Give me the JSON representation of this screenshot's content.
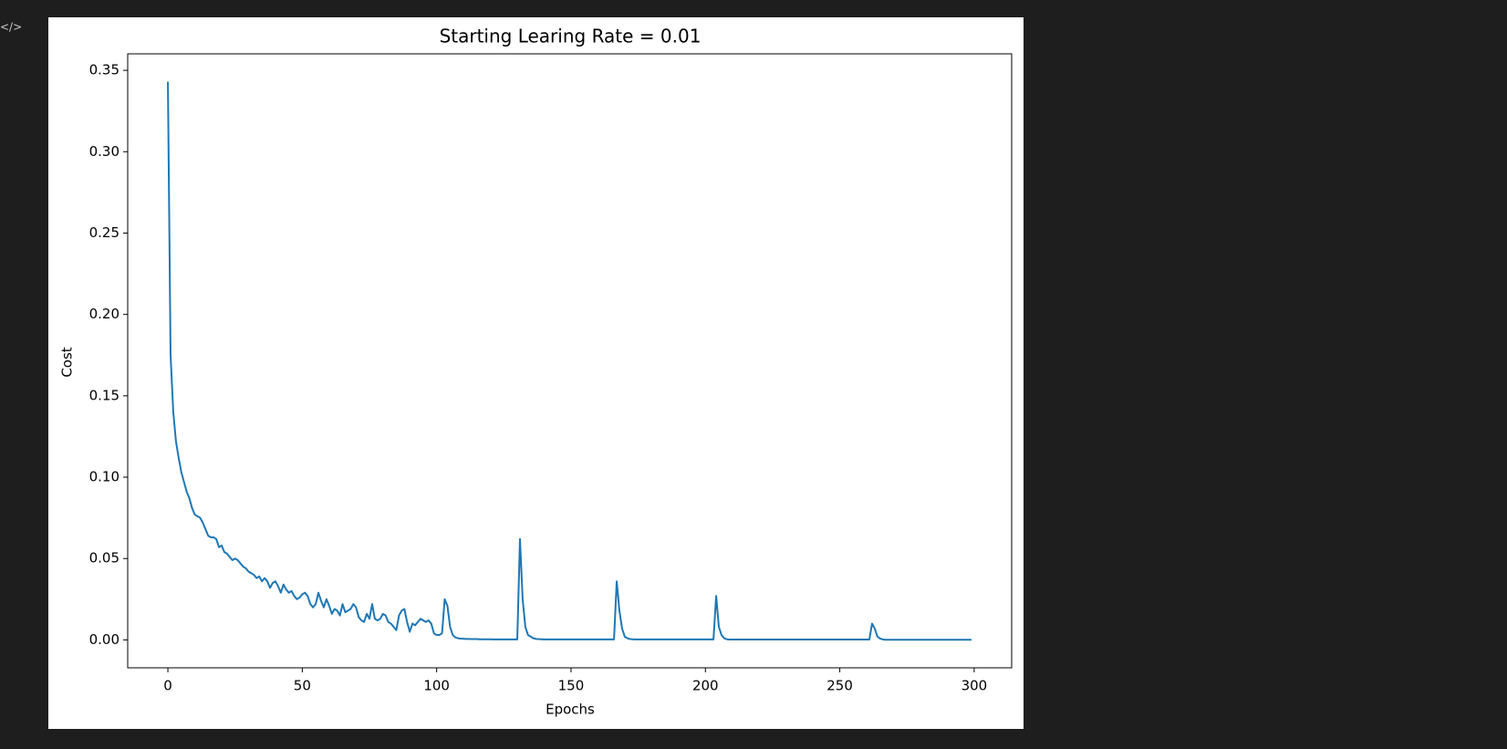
{
  "toolbar_icon": "</>",
  "chart_data": {
    "type": "line",
    "title": "Starting Learing Rate = 0.01",
    "xlabel": "Epochs",
    "ylabel": "Cost",
    "x": [
      0,
      1,
      2,
      3,
      4,
      5,
      6,
      7,
      8,
      9,
      10,
      11,
      12,
      13,
      14,
      15,
      16,
      17,
      18,
      19,
      20,
      21,
      22,
      23,
      24,
      25,
      26,
      27,
      28,
      29,
      30,
      31,
      32,
      33,
      34,
      35,
      36,
      37,
      38,
      39,
      40,
      41,
      42,
      43,
      44,
      45,
      46,
      47,
      48,
      49,
      50,
      51,
      52,
      53,
      54,
      55,
      56,
      57,
      58,
      59,
      60,
      61,
      62,
      63,
      64,
      65,
      66,
      67,
      68,
      69,
      70,
      71,
      72,
      73,
      74,
      75,
      76,
      77,
      78,
      79,
      80,
      81,
      82,
      83,
      84,
      85,
      86,
      87,
      88,
      89,
      90,
      91,
      92,
      93,
      94,
      95,
      96,
      97,
      98,
      99,
      100,
      101,
      102,
      103,
      104,
      105,
      106,
      107,
      108,
      109,
      110,
      111,
      112,
      113,
      114,
      115,
      116,
      117,
      118,
      119,
      120,
      121,
      122,
      123,
      124,
      125,
      126,
      127,
      128,
      129,
      130,
      131,
      132,
      133,
      134,
      135,
      136,
      137,
      138,
      139,
      140,
      141,
      142,
      143,
      144,
      145,
      146,
      147,
      148,
      149,
      150,
      151,
      152,
      153,
      154,
      155,
      156,
      157,
      158,
      159,
      160,
      161,
      162,
      163,
      164,
      165,
      166,
      167,
      168,
      169,
      170,
      171,
      172,
      173,
      174,
      175,
      176,
      177,
      178,
      179,
      180,
      181,
      182,
      183,
      184,
      185,
      186,
      187,
      188,
      189,
      190,
      191,
      192,
      193,
      194,
      195,
      196,
      197,
      198,
      199,
      200,
      201,
      202,
      203,
      204,
      205,
      206,
      207,
      208,
      209,
      210,
      211,
      212,
      213,
      214,
      215,
      216,
      217,
      218,
      219,
      220,
      221,
      222,
      223,
      224,
      225,
      226,
      227,
      228,
      229,
      230,
      231,
      232,
      233,
      234,
      235,
      236,
      237,
      238,
      239,
      240,
      241,
      242,
      243,
      244,
      245,
      246,
      247,
      248,
      249,
      250,
      251,
      252,
      253,
      254,
      255,
      256,
      257,
      258,
      259,
      260,
      261,
      262,
      263,
      264,
      265,
      266,
      267,
      268,
      269,
      270,
      271,
      272,
      273,
      274,
      275,
      276,
      277,
      278,
      279,
      280,
      281,
      282,
      283,
      284,
      285,
      286,
      287,
      288,
      289,
      290,
      291,
      292,
      293,
      294,
      295,
      296,
      297,
      298,
      299
    ],
    "series": [
      {
        "color": "#1f77b4",
        "values": [
          0.343,
          0.175,
          0.14,
          0.122,
          0.112,
          0.103,
          0.097,
          0.091,
          0.087,
          0.081,
          0.077,
          0.076,
          0.075,
          0.072,
          0.068,
          0.064,
          0.063,
          0.063,
          0.062,
          0.057,
          0.058,
          0.054,
          0.053,
          0.051,
          0.049,
          0.05,
          0.049,
          0.047,
          0.045,
          0.044,
          0.042,
          0.041,
          0.04,
          0.038,
          0.039,
          0.036,
          0.038,
          0.036,
          0.032,
          0.035,
          0.036,
          0.033,
          0.029,
          0.034,
          0.031,
          0.029,
          0.03,
          0.027,
          0.025,
          0.026,
          0.028,
          0.029,
          0.027,
          0.022,
          0.02,
          0.022,
          0.029,
          0.024,
          0.02,
          0.025,
          0.021,
          0.016,
          0.019,
          0.018,
          0.015,
          0.022,
          0.017,
          0.018,
          0.019,
          0.022,
          0.02,
          0.014,
          0.012,
          0.011,
          0.016,
          0.013,
          0.022,
          0.013,
          0.012,
          0.013,
          0.016,
          0.015,
          0.011,
          0.01,
          0.008,
          0.006,
          0.015,
          0.018,
          0.019,
          0.011,
          0.005,
          0.01,
          0.009,
          0.011,
          0.013,
          0.012,
          0.011,
          0.012,
          0.01,
          0.004,
          0.003,
          0.003,
          0.004,
          0.025,
          0.021,
          0.008,
          0.003,
          0.0015,
          0.001,
          0.0008,
          0.0007,
          0.0006,
          0.0006,
          0.0005,
          0.0005,
          0.0005,
          0.0004,
          0.0004,
          0.0004,
          0.0004,
          0.0004,
          0.0003,
          0.0003,
          0.0003,
          0.0003,
          0.0003,
          0.0003,
          0.0003,
          0.0003,
          0.0003,
          0.0003,
          0.062,
          0.025,
          0.008,
          0.003,
          0.002,
          0.001,
          0.0006,
          0.0005,
          0.0004,
          0.0003,
          0.0003,
          0.0003,
          0.0003,
          0.0003,
          0.0003,
          0.0003,
          0.0003,
          0.0003,
          0.0003,
          0.0003,
          0.0003,
          0.0003,
          0.0003,
          0.0003,
          0.0003,
          0.0003,
          0.0003,
          0.0003,
          0.0003,
          0.0003,
          0.0003,
          0.0003,
          0.0003,
          0.0003,
          0.0003,
          0.0003,
          0.036,
          0.018,
          0.007,
          0.002,
          0.001,
          0.0005,
          0.0004,
          0.0003,
          0.0003,
          0.0003,
          0.0003,
          0.0003,
          0.0003,
          0.0003,
          0.0003,
          0.0003,
          0.0003,
          0.0003,
          0.0003,
          0.0003,
          0.0003,
          0.0003,
          0.0003,
          0.0003,
          0.0003,
          0.0003,
          0.0003,
          0.0003,
          0.0003,
          0.0003,
          0.0003,
          0.0003,
          0.0003,
          0.0003,
          0.0003,
          0.0003,
          0.0003,
          0.027,
          0.008,
          0.003,
          0.001,
          0.0004,
          0.0002,
          0.0002,
          0.0002,
          0.0002,
          0.0002,
          0.0002,
          0.0002,
          0.0002,
          0.0002,
          0.0002,
          0.0002,
          0.0002,
          0.0002,
          0.0002,
          0.0002,
          0.0002,
          0.0002,
          0.0002,
          0.0002,
          0.0002,
          0.0002,
          0.0002,
          0.0002,
          0.0002,
          0.0002,
          0.0002,
          0.0002,
          0.0002,
          0.0002,
          0.0002,
          0.0002,
          0.0002,
          0.0002,
          0.0002,
          0.0002,
          0.0002,
          0.0002,
          0.0002,
          0.0002,
          0.0002,
          0.0002,
          0.0002,
          0.0002,
          0.0002,
          0.0002,
          0.0002,
          0.0002,
          0.0002,
          0.0002,
          0.0002,
          0.0002,
          0.0002,
          0.0002,
          0.01,
          0.007,
          0.002,
          0.0008,
          0.0003,
          0.0001,
          0.0001,
          0.0001,
          0.0001,
          0.0001,
          0.0001,
          0.0001,
          0.0001,
          0.0001,
          0.0001,
          0.0001,
          0.0001,
          0.0001,
          0.0001,
          0.0001,
          0.0001,
          0.0001,
          0.0001,
          0.0001,
          0.0001,
          0.0001,
          0.0001,
          0.0001,
          0.0001,
          0.0001,
          0.0001,
          0.0001,
          0.0001,
          0.0001,
          0.0001,
          0.0001,
          0.0001,
          0.0001
        ]
      }
    ],
    "xlim": [
      -14.95,
      313.95
    ],
    "xticks": [
      0,
      50,
      100,
      150,
      200,
      250,
      300
    ],
    "ylim": [
      -0.01715,
      0.36015
    ],
    "yticks": [
      {
        "value": 0,
        "label": "0.00"
      },
      {
        "value": 0.05,
        "label": "0.05"
      },
      {
        "value": 0.1,
        "label": "0.10"
      },
      {
        "value": 0.15,
        "label": "0.15"
      },
      {
        "value": 0.2,
        "label": "0.20"
      },
      {
        "value": 0.25,
        "label": "0.25"
      },
      {
        "value": 0.3,
        "label": "0.30"
      },
      {
        "value": 0.35,
        "label": "0.35"
      }
    ],
    "grid": false
  }
}
